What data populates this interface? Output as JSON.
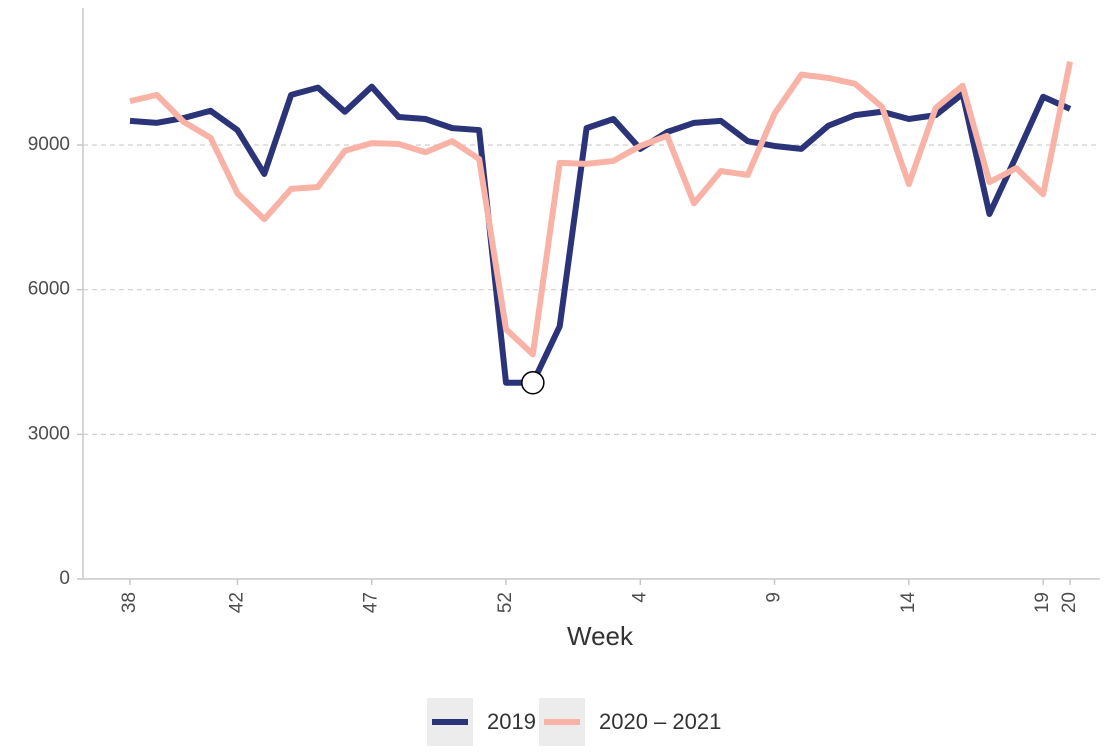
{
  "chart_data": {
    "type": "line",
    "x_label": "Week",
    "categories": [
      "38",
      null,
      null,
      null,
      "42",
      null,
      null,
      null,
      null,
      "47",
      null,
      null,
      null,
      null,
      "52",
      null,
      null,
      null,
      null,
      "4",
      null,
      null,
      null,
      null,
      "9",
      null,
      null,
      null,
      null,
      "14",
      null,
      null,
      null,
      null,
      "19",
      "20"
    ],
    "series": [
      {
        "name": "2019",
        "color": "#2b3478",
        "values": [
          9500,
          9460,
          9560,
          9710,
          9310,
          8400,
          10040,
          10190,
          9690,
          10210,
          9580,
          9540,
          9350,
          9310,
          4070,
          4070,
          5240,
          9350,
          9540,
          8920,
          9270,
          9460,
          9500,
          9080,
          8980,
          8920,
          9400,
          9620,
          9690,
          9540,
          9620,
          10060,
          7570,
          8770,
          10000,
          9750
        ]
      },
      {
        "name": "2020 – 2021",
        "color": "#f9b3a6",
        "values": [
          9910,
          10040,
          9480,
          9150,
          8000,
          7460,
          8090,
          8130,
          8880,
          9040,
          9020,
          8850,
          9080,
          8710,
          5180,
          4660,
          8630,
          8610,
          8670,
          8980,
          9190,
          7790,
          8460,
          8380,
          9650,
          10460,
          10390,
          10270,
          9790,
          8190,
          9770,
          10230,
          8230,
          8520,
          7980,
          10730
        ]
      }
    ],
    "highlight": {
      "series": 0,
      "index": 15
    },
    "ylim": [
      0,
      11800
    ],
    "yticks": [
      0,
      3000,
      6000,
      9000
    ],
    "grid": true,
    "legend": "bottom"
  }
}
